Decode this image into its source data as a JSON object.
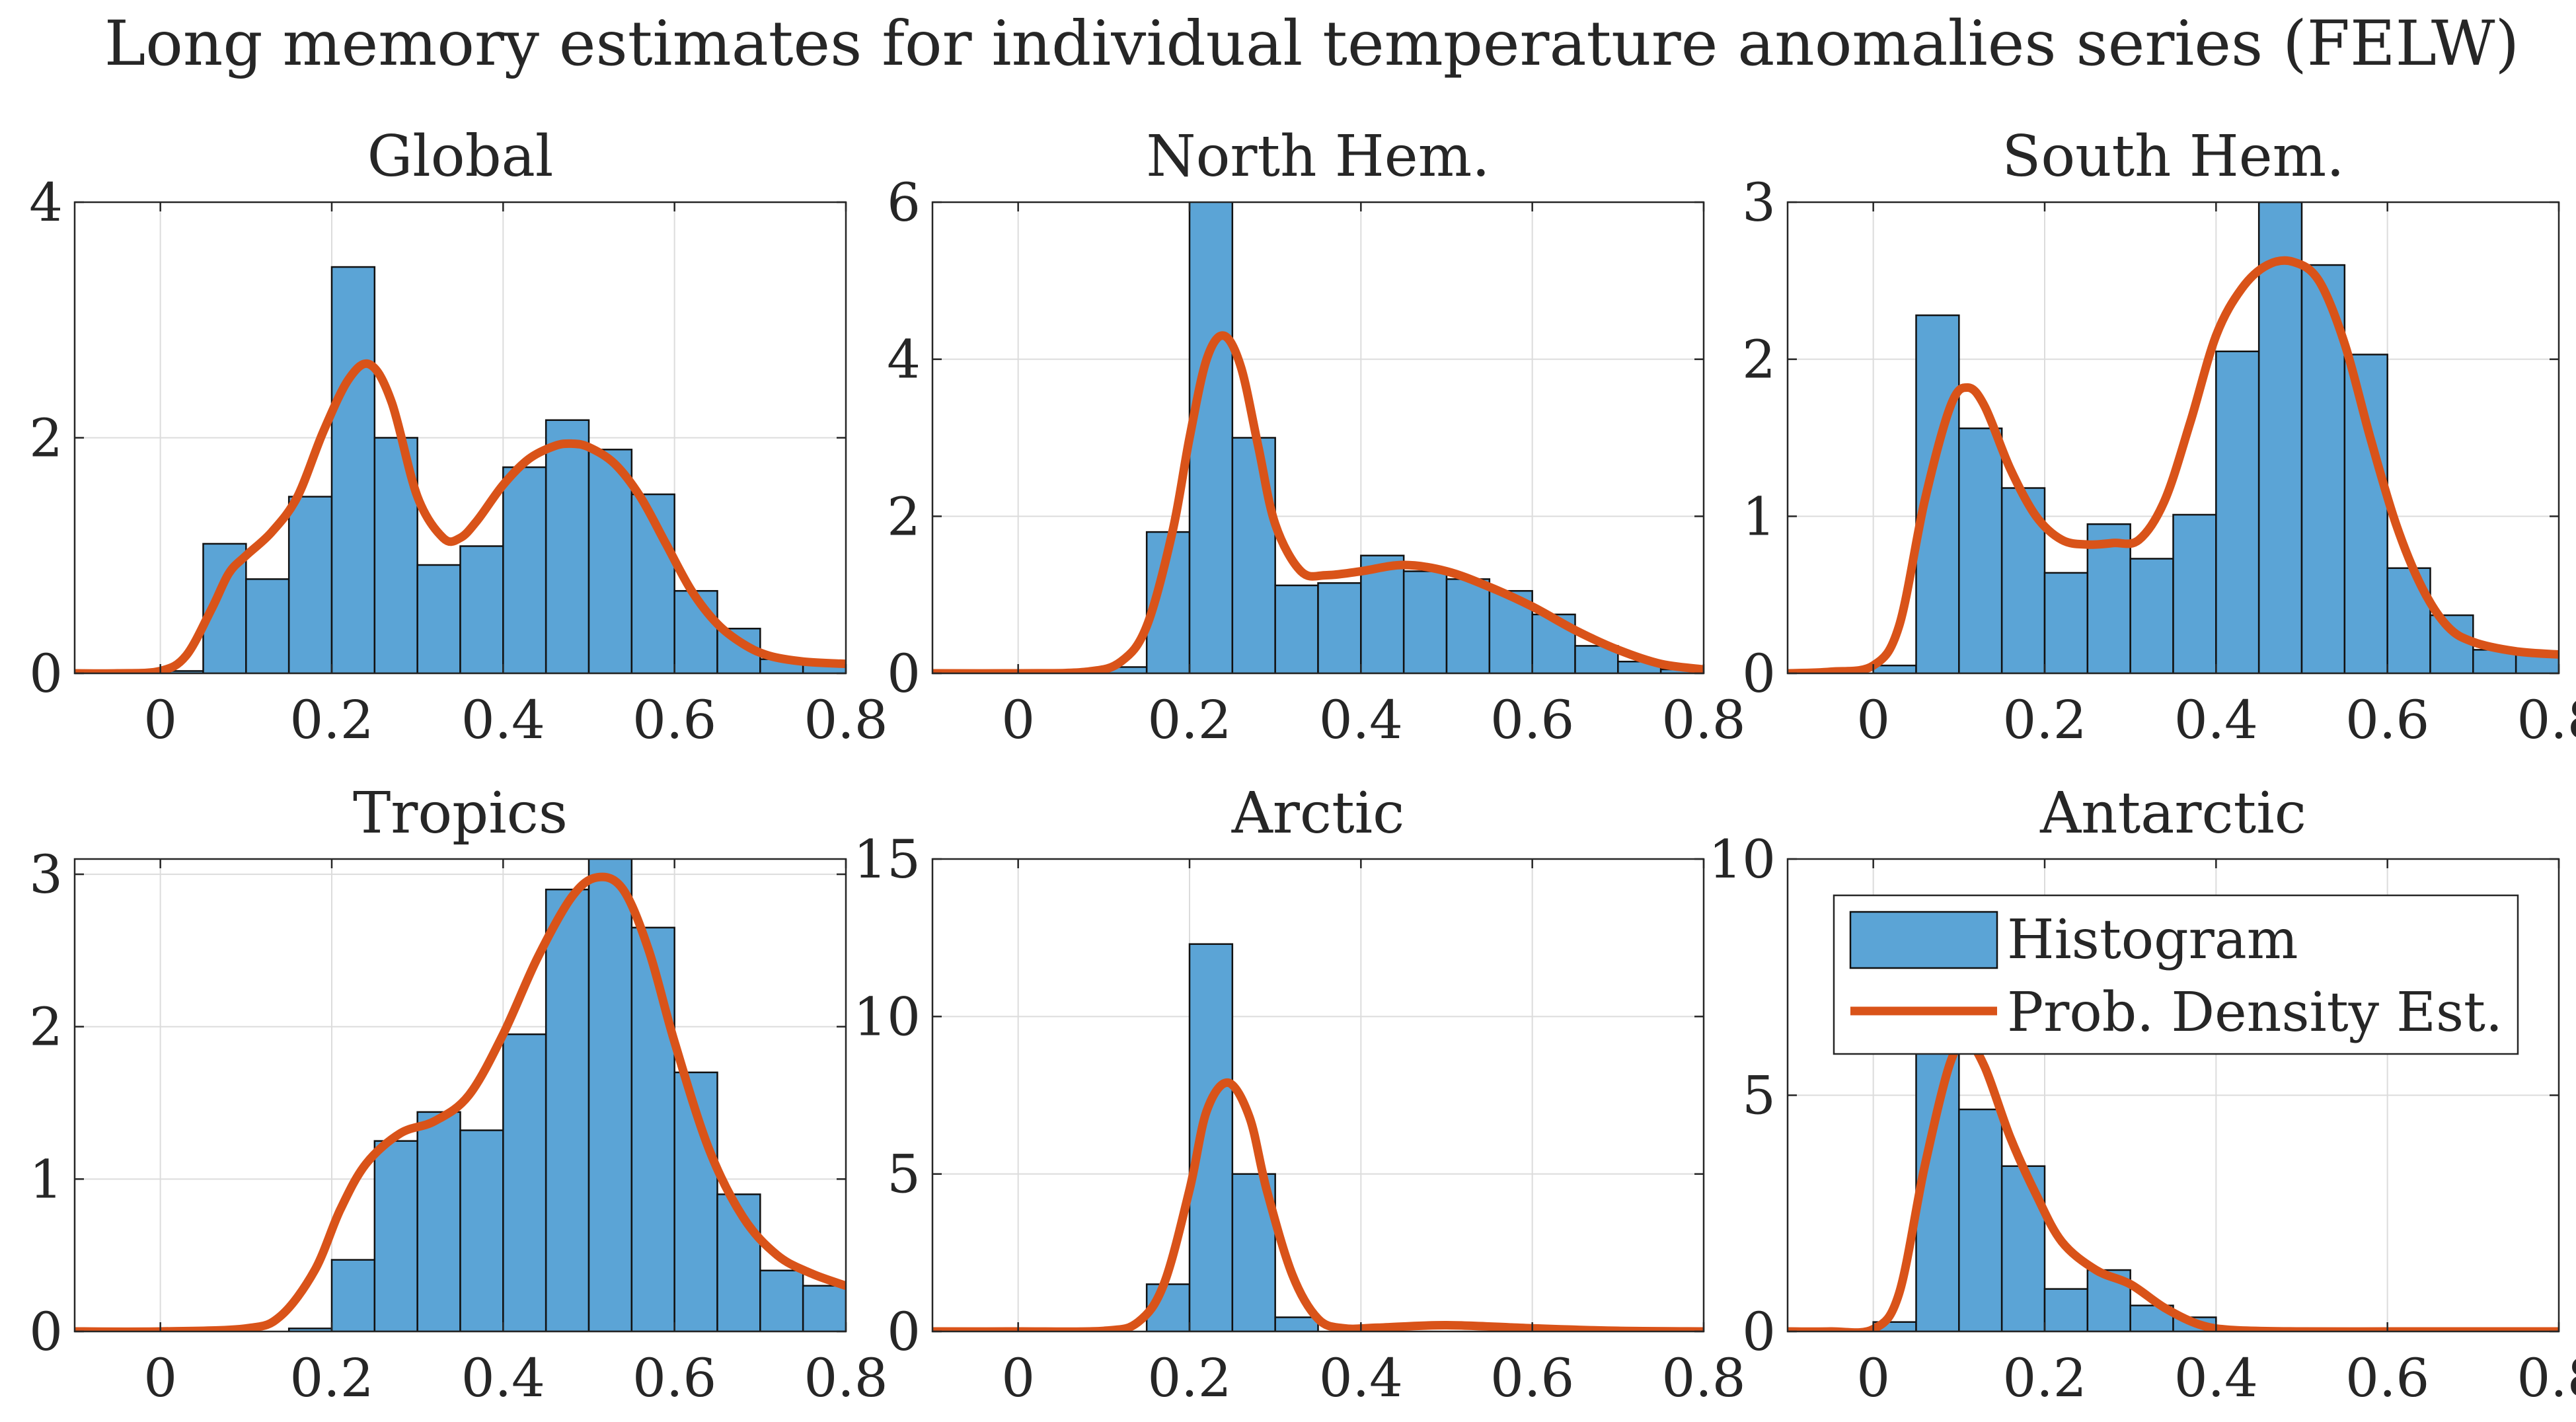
{
  "figure": {
    "title": "Long memory estimates for individual temperature anomalies series (FELW)"
  },
  "colors": {
    "bar_fill": "#5BA4D6",
    "bar_edge": "#111111",
    "density_line": "#D95319",
    "grid": "#dcdcdc",
    "axis": "#262626"
  },
  "legend": {
    "histogram_label": "Histogram",
    "density_label": "Prob. Density Est."
  },
  "chart_data": [
    {
      "type": "bar",
      "title": "Global",
      "xlim": [
        -0.1,
        0.8
      ],
      "ylim": [
        0,
        4
      ],
      "xticks": [
        0,
        0.2,
        0.4,
        0.6,
        0.8
      ],
      "xtick_labels": [
        "0",
        "0.2",
        "0.4",
        "0.6",
        "0.8"
      ],
      "yticks": [
        0,
        2,
        4
      ],
      "ytick_labels": [
        "0",
        "2",
        "4"
      ],
      "bin_edges": [
        0.0,
        0.05,
        0.1,
        0.15,
        0.2,
        0.25,
        0.3,
        0.35,
        0.4,
        0.45,
        0.5,
        0.55,
        0.6,
        0.65,
        0.7,
        0.75,
        0.8
      ],
      "bar_values": [
        0.02,
        1.1,
        0.8,
        1.5,
        3.45,
        2.0,
        0.92,
        1.08,
        1.75,
        2.15,
        1.9,
        1.52,
        0.7,
        0.38,
        0.12,
        0.1
      ],
      "density_x": [
        -0.1,
        -0.05,
        0.0,
        0.03,
        0.06,
        0.08,
        0.1,
        0.13,
        0.16,
        0.19,
        0.22,
        0.245,
        0.27,
        0.3,
        0.33,
        0.35,
        0.37,
        0.4,
        0.43,
        0.46,
        0.48,
        0.5,
        0.53,
        0.56,
        0.59,
        0.62,
        0.65,
        0.68,
        0.71,
        0.75,
        0.8
      ],
      "density_y": [
        0,
        0,
        0.02,
        0.15,
        0.55,
        0.85,
        1.0,
        1.2,
        1.5,
        2.05,
        2.5,
        2.62,
        2.3,
        1.5,
        1.15,
        1.15,
        1.3,
        1.6,
        1.82,
        1.93,
        1.95,
        1.92,
        1.78,
        1.5,
        1.1,
        0.7,
        0.42,
        0.25,
        0.15,
        0.1,
        0.08
      ]
    },
    {
      "type": "bar",
      "title": "North Hem.",
      "xlim": [
        -0.1,
        0.8
      ],
      "ylim": [
        0,
        6
      ],
      "xticks": [
        0,
        0.2,
        0.4,
        0.6,
        0.8
      ],
      "xtick_labels": [
        "0",
        "0.2",
        "0.4",
        "0.6",
        "0.8"
      ],
      "yticks": [
        0,
        2,
        4,
        6
      ],
      "ytick_labels": [
        "0",
        "2",
        "4",
        "6"
      ],
      "bin_edges": [
        0.1,
        0.15,
        0.2,
        0.25,
        0.3,
        0.35,
        0.4,
        0.45,
        0.5,
        0.55,
        0.6,
        0.65,
        0.7,
        0.75,
        0.8
      ],
      "bar_values": [
        0.08,
        1.8,
        6.2,
        3.0,
        1.12,
        1.15,
        1.5,
        1.3,
        1.2,
        1.05,
        0.75,
        0.35,
        0.15,
        0.05
      ],
      "density_x": [
        -0.1,
        0.0,
        0.08,
        0.12,
        0.15,
        0.18,
        0.2,
        0.22,
        0.24,
        0.26,
        0.28,
        0.3,
        0.33,
        0.36,
        0.4,
        0.45,
        0.5,
        0.55,
        0.6,
        0.65,
        0.7,
        0.75,
        0.8
      ],
      "density_y": [
        0,
        0,
        0.02,
        0.15,
        0.6,
        1.8,
        3.0,
        4.0,
        4.3,
        3.9,
        2.9,
        1.9,
        1.3,
        1.25,
        1.3,
        1.38,
        1.3,
        1.1,
        0.85,
        0.55,
        0.3,
        0.12,
        0.05
      ]
    },
    {
      "type": "bar",
      "title": "South Hem.",
      "xlim": [
        -0.1,
        0.8
      ],
      "ylim": [
        0,
        3
      ],
      "xticks": [
        0,
        0.2,
        0.4,
        0.6,
        0.8
      ],
      "xtick_labels": [
        "0",
        "0.2",
        "0.4",
        "0.6",
        "0.8"
      ],
      "yticks": [
        0,
        1,
        2,
        3
      ],
      "ytick_labels": [
        "0",
        "1",
        "2",
        "3"
      ],
      "bin_edges": [
        0.0,
        0.05,
        0.1,
        0.15,
        0.2,
        0.25,
        0.3,
        0.35,
        0.4,
        0.45,
        0.5,
        0.55,
        0.6,
        0.65,
        0.7,
        0.75,
        0.8
      ],
      "bar_values": [
        0.05,
        2.28,
        1.56,
        1.18,
        0.64,
        0.95,
        0.73,
        1.01,
        2.05,
        3.0,
        2.6,
        2.03,
        0.67,
        0.37,
        0.15,
        0.12
      ],
      "density_x": [
        -0.1,
        -0.05,
        0.0,
        0.03,
        0.06,
        0.09,
        0.11,
        0.13,
        0.16,
        0.19,
        0.22,
        0.25,
        0.28,
        0.31,
        0.34,
        0.37,
        0.4,
        0.43,
        0.46,
        0.49,
        0.52,
        0.55,
        0.58,
        0.61,
        0.64,
        0.67,
        0.7,
        0.75,
        0.8
      ],
      "density_y": [
        0,
        0.01,
        0.05,
        0.3,
        1.1,
        1.7,
        1.82,
        1.7,
        1.3,
        1.0,
        0.85,
        0.82,
        0.83,
        0.85,
        1.1,
        1.6,
        2.15,
        2.45,
        2.6,
        2.62,
        2.5,
        2.1,
        1.5,
        0.95,
        0.55,
        0.3,
        0.2,
        0.14,
        0.12
      ]
    },
    {
      "type": "bar",
      "title": "Tropics",
      "xlim": [
        -0.1,
        0.8
      ],
      "ylim": [
        0,
        3.1
      ],
      "xticks": [
        0,
        0.2,
        0.4,
        0.6,
        0.8
      ],
      "xtick_labels": [
        "0",
        "0.2",
        "0.4",
        "0.6",
        "0.8"
      ],
      "yticks": [
        0,
        1,
        2,
        3
      ],
      "ytick_labels": [
        "0",
        "1",
        "2",
        "3"
      ],
      "bin_edges": [
        0.15,
        0.2,
        0.25,
        0.3,
        0.35,
        0.4,
        0.45,
        0.5,
        0.55,
        0.6,
        0.65,
        0.7,
        0.75,
        0.8
      ],
      "bar_values": [
        0.02,
        0.47,
        1.25,
        1.44,
        1.32,
        1.95,
        2.9,
        3.15,
        2.65,
        1.7,
        0.9,
        0.4,
        0.3
      ],
      "density_x": [
        -0.1,
        0.0,
        0.1,
        0.14,
        0.18,
        0.21,
        0.24,
        0.28,
        0.32,
        0.36,
        0.4,
        0.44,
        0.48,
        0.51,
        0.54,
        0.57,
        0.6,
        0.64,
        0.68,
        0.72,
        0.76,
        0.8
      ],
      "density_y": [
        0,
        0,
        0.02,
        0.1,
        0.4,
        0.8,
        1.1,
        1.3,
        1.38,
        1.55,
        1.95,
        2.45,
        2.85,
        2.98,
        2.9,
        2.5,
        1.9,
        1.2,
        0.75,
        0.5,
        0.38,
        0.3
      ]
    },
    {
      "type": "bar",
      "title": "Arctic",
      "xlim": [
        -0.1,
        0.8
      ],
      "ylim": [
        0,
        15
      ],
      "xticks": [
        0,
        0.2,
        0.4,
        0.6,
        0.8
      ],
      "xtick_labels": [
        "0",
        "0.2",
        "0.4",
        "0.6",
        "0.8"
      ],
      "yticks": [
        0,
        5,
        10,
        15
      ],
      "ytick_labels": [
        "0",
        "5",
        "10",
        "15"
      ],
      "bin_edges": [
        0.15,
        0.2,
        0.25,
        0.3,
        0.35
      ],
      "bar_values": [
        1.5,
        12.3,
        5.0,
        0.45
      ],
      "density_x": [
        -0.1,
        0.0,
        0.1,
        0.14,
        0.17,
        0.2,
        0.22,
        0.245,
        0.27,
        0.29,
        0.32,
        0.35,
        0.38,
        0.42,
        0.5,
        0.6,
        0.7,
        0.8
      ],
      "density_y": [
        0,
        0,
        0.02,
        0.3,
        1.5,
        4.5,
        7.0,
        7.9,
        6.8,
        4.5,
        1.8,
        0.4,
        0.1,
        0.12,
        0.2,
        0.1,
        0.02,
        0
      ]
    },
    {
      "type": "bar",
      "title": "Antarctic",
      "xlim": [
        -0.1,
        0.8
      ],
      "ylim": [
        0,
        10
      ],
      "xticks": [
        0,
        0.2,
        0.4,
        0.6,
        0.8
      ],
      "xtick_labels": [
        "0",
        "0.2",
        "0.4",
        "0.6",
        "0.8"
      ],
      "yticks": [
        0,
        5,
        10
      ],
      "ytick_labels": [
        "0",
        "5",
        "10"
      ],
      "bin_edges": [
        0.0,
        0.05,
        0.1,
        0.15,
        0.2,
        0.25,
        0.3,
        0.35,
        0.4
      ],
      "bar_values": [
        0.2,
        6.3,
        4.7,
        3.5,
        0.9,
        1.3,
        0.55,
        0.3
      ],
      "density_x": [
        -0.1,
        -0.05,
        0.0,
        0.03,
        0.06,
        0.09,
        0.11,
        0.13,
        0.16,
        0.19,
        0.22,
        0.26,
        0.3,
        0.34,
        0.38,
        0.42,
        0.5,
        0.6,
        0.7,
        0.8
      ],
      "density_y": [
        0,
        0,
        0.05,
        0.8,
        3.5,
        5.7,
        6.1,
        5.6,
        4.1,
        2.9,
        1.9,
        1.3,
        1.0,
        0.5,
        0.15,
        0.03,
        0,
        0,
        0,
        0
      ]
    }
  ]
}
